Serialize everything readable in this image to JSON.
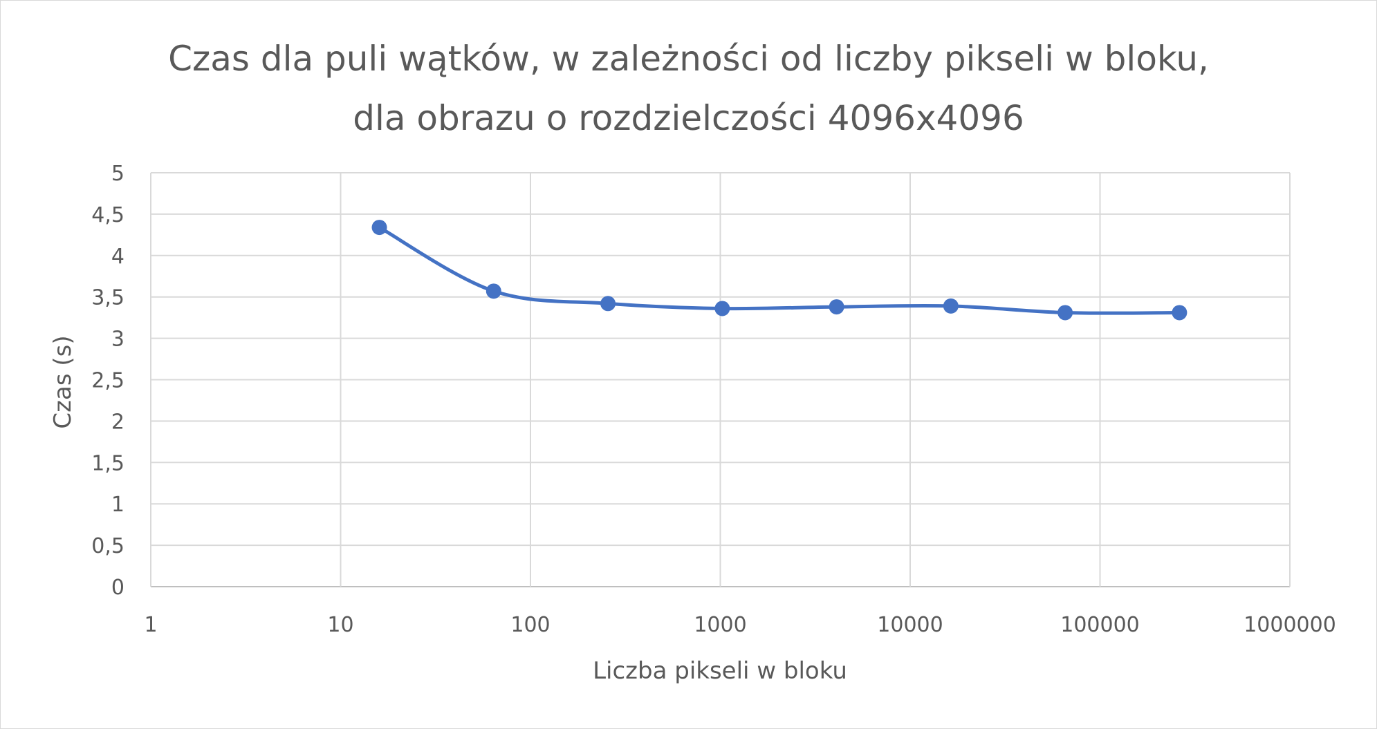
{
  "chart_data": {
    "type": "scatter",
    "title_lines": [
      "Czas dla puli wątków, w zależności od liczby pikseli w bloku,",
      "dla obrazu o rozdzielczości 4096x4096"
    ],
    "xlabel": "Liczba pikseli w bloku",
    "ylabel": "Czas (s)",
    "x_scale": "log",
    "xlim": [
      1,
      1000000
    ],
    "ylim": [
      0,
      5
    ],
    "x_ticks": [
      1,
      10,
      100,
      1000,
      10000,
      100000,
      1000000
    ],
    "x_tick_labels": [
      "1",
      "10",
      "100",
      "1000",
      "10000",
      "100000",
      "1000000"
    ],
    "y_ticks": [
      0,
      0.5,
      1,
      1.5,
      2,
      2.5,
      3,
      3.5,
      4,
      4.5,
      5
    ],
    "y_tick_labels": [
      "0",
      "0,5",
      "1",
      "1,5",
      "2",
      "2,5",
      "3",
      "3,5",
      "4",
      "4,5",
      "5"
    ],
    "grid": true,
    "line_style": "smooth",
    "series": [
      {
        "color": "#4472c4",
        "x": [
          16,
          64,
          256,
          1024,
          4096,
          16384,
          65536,
          262144
        ],
        "y": [
          4.34,
          3.57,
          3.42,
          3.36,
          3.38,
          3.39,
          3.31,
          3.31
        ]
      }
    ]
  }
}
